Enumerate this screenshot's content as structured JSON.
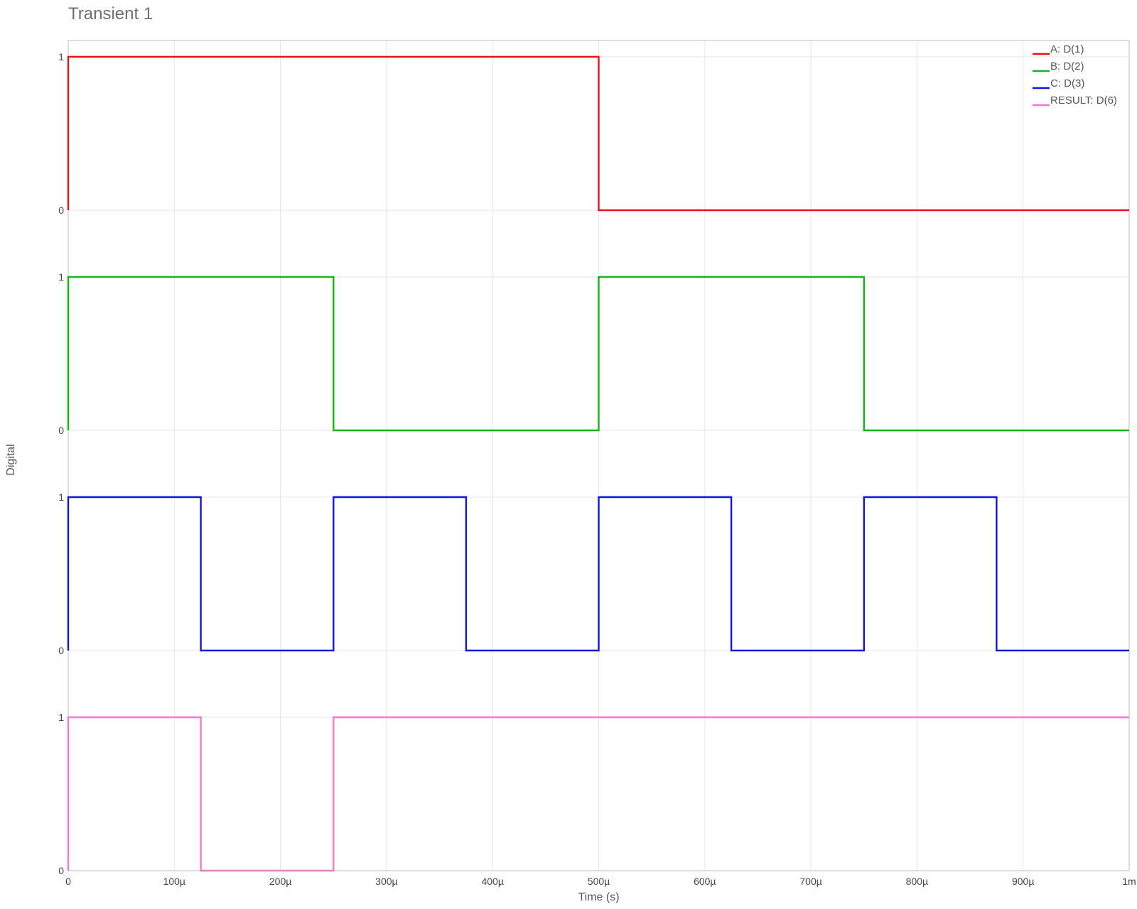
{
  "window": {
    "title": "Transient 1"
  },
  "chart_data": {
    "type": "line",
    "step": true,
    "xlabel": "Time (s)",
    "ylabel": "Digital",
    "xlim": [
      0,
      0.001
    ],
    "x_ticks": [
      {
        "value": 0,
        "label": "0"
      },
      {
        "value": 0.0001,
        "label": "100µ"
      },
      {
        "value": 0.0002,
        "label": "200µ"
      },
      {
        "value": 0.0003,
        "label": "300µ"
      },
      {
        "value": 0.0004,
        "label": "400µ"
      },
      {
        "value": 0.0005,
        "label": "500µ"
      },
      {
        "value": 0.0006,
        "label": "600µ"
      },
      {
        "value": 0.0007,
        "label": "700µ"
      },
      {
        "value": 0.0008,
        "label": "800µ"
      },
      {
        "value": 0.0009,
        "label": "900µ"
      },
      {
        "value": 0.001,
        "label": "1m"
      }
    ],
    "y_tick_labels": [
      "0",
      "1"
    ],
    "grid": true,
    "legend_position": "top-right",
    "series": [
      {
        "name": "A: D(1)",
        "color": "#e8141a",
        "x": [
          0,
          0.0005,
          0.0005,
          0.001
        ],
        "y": [
          1,
          1,
          0,
          0
        ]
      },
      {
        "name": "B: D(2)",
        "color": "#13b913",
        "x": [
          0,
          0.00025,
          0.00025,
          0.0005,
          0.0005,
          0.00075,
          0.00075,
          0.001
        ],
        "y": [
          1,
          1,
          0,
          0,
          1,
          1,
          0,
          0
        ]
      },
      {
        "name": "C: D(3)",
        "color": "#1414e0",
        "x": [
          0,
          0.000125,
          0.000125,
          0.00025,
          0.00025,
          0.000375,
          0.000375,
          0.0005,
          0.0005,
          0.000625,
          0.000625,
          0.00075,
          0.00075,
          0.000875,
          0.000875,
          0.001
        ],
        "y": [
          1,
          1,
          0,
          0,
          1,
          1,
          0,
          0,
          1,
          1,
          0,
          0,
          1,
          1,
          0,
          0
        ]
      },
      {
        "name": "RESULT: D(6)",
        "color": "#f07dc6",
        "x": [
          0,
          0.000125,
          0.000125,
          0.00025,
          0.00025,
          0.0005,
          0.0005,
          0.001
        ],
        "y": [
          1,
          1,
          0,
          0,
          1,
          1,
          1,
          1
        ]
      }
    ]
  }
}
